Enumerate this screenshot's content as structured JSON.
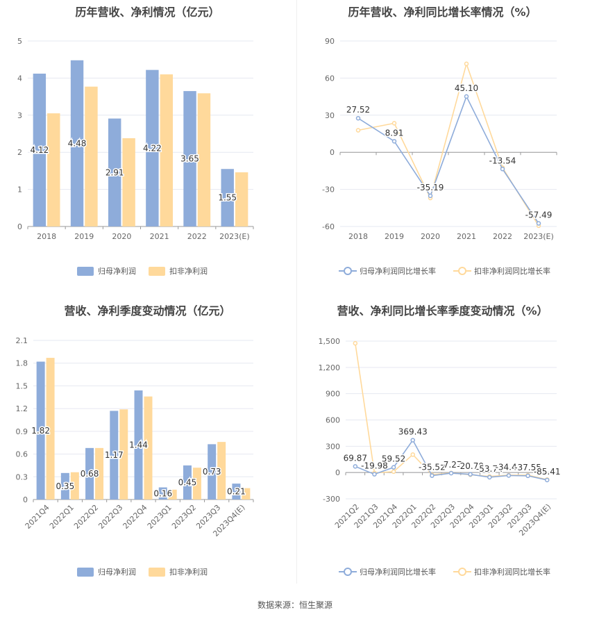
{
  "source": "数据来源：恒生聚源",
  "chart_data": [
    {
      "type": "bar",
      "title": "历年营收、净利情况（亿元）",
      "categories": [
        "2018",
        "2019",
        "2020",
        "2021",
        "2022",
        "2023(E)"
      ],
      "ylim": [
        0,
        5
      ],
      "yticks": [
        "0",
        "1",
        "2",
        "3",
        "4",
        "5"
      ],
      "series": [
        {
          "name": "归母净利润",
          "values": [
            4.12,
            4.48,
            2.91,
            4.22,
            3.65,
            1.55
          ],
          "color": "#8eacda",
          "labels": [
            "4.12",
            "4.48",
            "2.91",
            "4.22",
            "3.65",
            "1.55"
          ]
        },
        {
          "name": "扣非净利润",
          "values": [
            3.05,
            3.77,
            2.38,
            4.1,
            3.59,
            1.46
          ],
          "color": "#ffd99b"
        }
      ],
      "grid": true,
      "legend": "bottom"
    },
    {
      "type": "line",
      "title": "历年营收、净利同比增长率情况（%）",
      "categories": [
        "2018",
        "2019",
        "2020",
        "2021",
        "2022",
        "2023(E)"
      ],
      "ylim": [
        -60,
        90
      ],
      "yticks": [
        "-60",
        "-30",
        "0",
        "30",
        "60",
        "90"
      ],
      "series": [
        {
          "name": "归母净利润同比增长率",
          "values": [
            27.52,
            8.91,
            -35.19,
            45.1,
            -13.54,
            -57.49
          ],
          "color": "#8eacda",
          "labels": [
            "27.52",
            "8.91",
            "-35.19",
            "45.10",
            "-13.54",
            "-57.49"
          ]
        },
        {
          "name": "扣非净利润同比增长率",
          "values": [
            17.8,
            23.5,
            -37.0,
            71.5,
            -12.5,
            -59.4
          ],
          "color": "#ffd99b"
        }
      ],
      "grid": true,
      "legend": "bottom"
    },
    {
      "type": "bar",
      "title": "营收、净利季度变动情况（亿元）",
      "categories": [
        "2021Q4",
        "2022Q1",
        "2022Q2",
        "2022Q3",
        "2022Q4",
        "2023Q1",
        "2023Q2",
        "2023Q3",
        "2023Q4(E)"
      ],
      "ylim": [
        0,
        2.1
      ],
      "yticks": [
        "0",
        "0.3",
        "0.6",
        "0.9",
        "1.2",
        "1.5",
        "1.8",
        "2.1"
      ],
      "series": [
        {
          "name": "归母净利润",
          "values": [
            1.82,
            0.35,
            0.68,
            1.17,
            1.44,
            0.16,
            0.45,
            0.73,
            0.21
          ],
          "color": "#8eacda",
          "labels": [
            "1.82",
            "0.35",
            "0.68",
            "1.17",
            "1.44",
            "0.16",
            "0.45",
            "0.73",
            "0.21"
          ]
        },
        {
          "name": "扣非净利润",
          "values": [
            1.87,
            0.36,
            0.68,
            1.19,
            1.36,
            0.13,
            0.42,
            0.76,
            0.15
          ],
          "color": "#ffd99b"
        }
      ],
      "grid": true,
      "legend": "bottom"
    },
    {
      "type": "line",
      "title": "营收、净利同比增长率季度变动情况（%）",
      "categories": [
        "2021Q2",
        "2021Q3",
        "2021Q4",
        "2022Q1",
        "2022Q2",
        "2022Q3",
        "2022Q4",
        "2023Q1",
        "2023Q2",
        "2023Q3",
        "2023Q4(E)"
      ],
      "ylim": [
        -300,
        1500
      ],
      "yticks": [
        "-300",
        "0",
        "300",
        "600",
        "900",
        "1,200",
        "1,500"
      ],
      "series": [
        {
          "name": "归母净利润同比增长率",
          "values": [
            69.87,
            -19.98,
            59.52,
            369.43,
            -35.52,
            -7.27,
            -20.79,
            -53.74,
            -34.42,
            -37.55,
            -85.41
          ],
          "color": "#8eacda",
          "labels": [
            "69.87",
            "-19.98",
            "59.52",
            "369.43",
            "-35.52",
            "-7.27",
            "-20.79",
            "-53.74",
            "-34.42",
            "-37.55",
            "-85.41"
          ]
        },
        {
          "name": "扣非净利润同比增长率",
          "values": [
            1475,
            -5,
            10,
            205,
            -25,
            -5,
            -25,
            -45,
            -30,
            -30,
            -80
          ],
          "color": "#ffd99b"
        }
      ],
      "grid": true,
      "legend": "bottom"
    }
  ]
}
